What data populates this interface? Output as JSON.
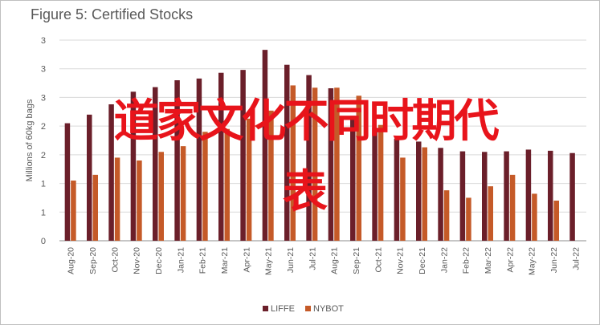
{
  "chart_data": {
    "type": "bar",
    "title": "Figure 5: Certified Stocks",
    "ylabel": "Millions of 60kg bags",
    "yticks": [
      "0",
      "1",
      "1",
      "2",
      "2",
      "3",
      "3",
      "3"
    ],
    "ylim": [
      0,
      3.5
    ],
    "categories": [
      "Aug-20",
      "Sep-20",
      "Oct-20",
      "Nov-20",
      "Dec-20",
      "Jan-21",
      "Feb-21",
      "Mar-21",
      "Apr-21",
      "May-21",
      "Jun-21",
      "Jul-21",
      "Aug-21",
      "Sep-21",
      "Oct-21",
      "Nov-21",
      "Dec-21",
      "Jan-22",
      "Feb-22",
      "Mar-22",
      "Apr-22",
      "May-22",
      "Jun-22",
      "Jul-22"
    ],
    "series": [
      {
        "name": "LIFFE",
        "color": "#6b1f2a",
        "values": [
          2.05,
          2.2,
          2.38,
          2.6,
          2.68,
          2.8,
          2.83,
          2.93,
          2.98,
          3.33,
          3.07,
          2.89,
          2.66,
          2.18,
          1.97,
          1.78,
          1.73,
          1.62,
          1.56,
          1.55,
          1.56,
          1.59,
          1.57,
          1.53
        ]
      },
      {
        "name": "NYBOT",
        "color": "#c55a28",
        "values": [
          1.05,
          1.15,
          1.45,
          1.4,
          1.55,
          1.65,
          1.9,
          1.95,
          2.13,
          2.27,
          2.71,
          2.67,
          2.67,
          2.53,
          2.02,
          1.45,
          1.63,
          0.88,
          0.75,
          0.95,
          1.15,
          0.82,
          0.7,
          null
        ]
      }
    ],
    "grid": true,
    "legend": "bottom"
  },
  "overlay": {
    "line1": "道家文化不同时期代",
    "line2": "表"
  }
}
